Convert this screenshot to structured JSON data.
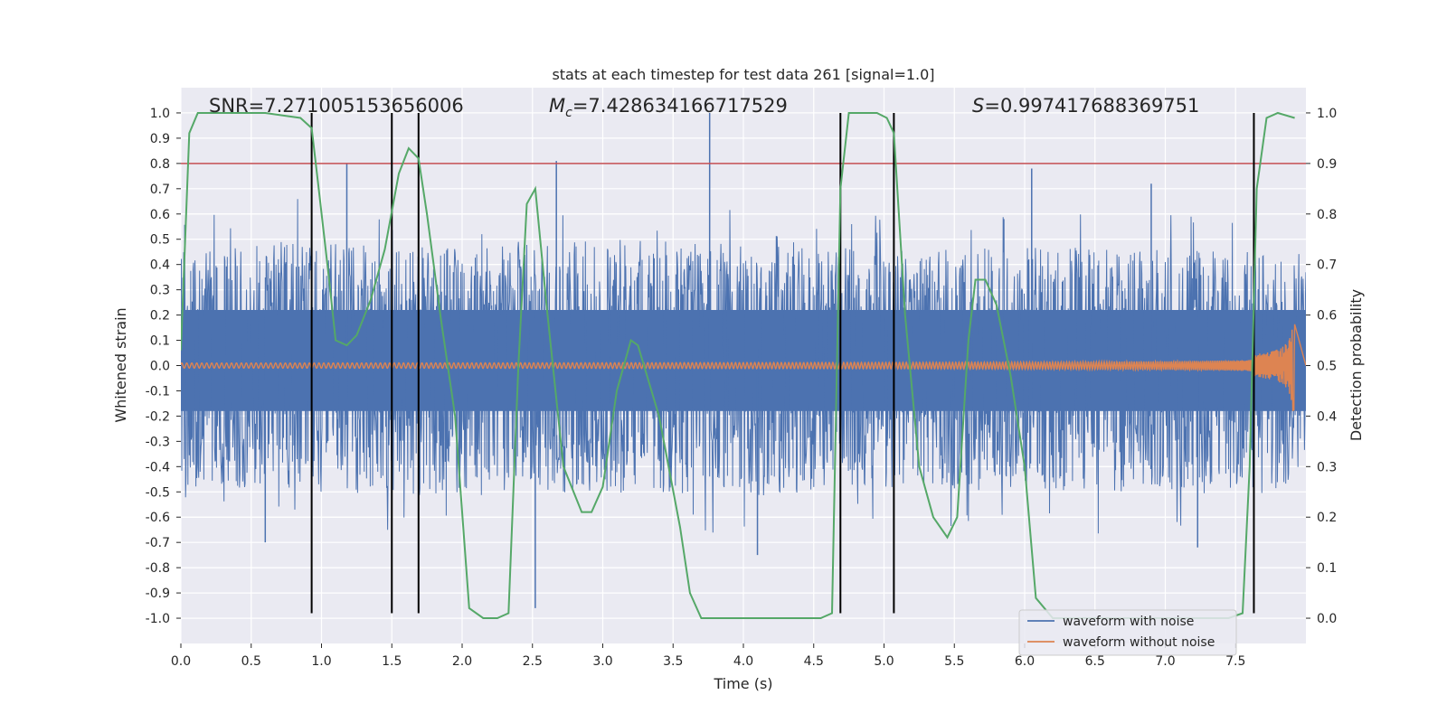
{
  "chart_data": {
    "type": "line",
    "title": "stats at each timestep for test data 261 [signal=1.0]",
    "xlabel": "Time (s)",
    "ylabel": "Whitened strain",
    "y2label": "Detection probability",
    "xlim": [
      0,
      8.0
    ],
    "ylim": [
      -1.1,
      1.1
    ],
    "y2lim": [
      -0.05,
      1.05
    ],
    "x_ticks": [
      0.0,
      0.5,
      1.0,
      1.5,
      2.0,
      2.5,
      3.0,
      3.5,
      4.0,
      4.5,
      5.0,
      5.5,
      6.0,
      6.5,
      7.0,
      7.5
    ],
    "x_tick_labels": [
      "0.0",
      "0.5",
      "1.0",
      "1.5",
      "2.0",
      "2.5",
      "3.0",
      "3.5",
      "4.0",
      "4.5",
      "5.0",
      "5.5",
      "6.0",
      "6.5",
      "7.0",
      "7.5"
    ],
    "y_ticks": [
      1.0,
      0.9,
      0.8,
      0.7,
      0.6,
      0.5,
      0.4,
      0.3,
      0.2,
      0.1,
      0.0,
      -0.1,
      -0.2,
      -0.3,
      -0.4,
      -0.5,
      -0.6,
      -0.7,
      -0.8,
      -0.9,
      -1.0
    ],
    "y_tick_labels": [
      "1.0",
      "0.9",
      "0.8",
      "0.7",
      "0.6",
      "0.5",
      "0.4",
      "0.3",
      "0.2",
      "0.1",
      "0.0",
      "-0.1",
      "-0.2",
      "-0.3",
      "-0.4",
      "-0.5",
      "-0.6",
      "-0.7",
      "-0.8",
      "-0.9",
      "-1.0"
    ],
    "y2_ticks": [
      1.0,
      0.9,
      0.8,
      0.7,
      0.6,
      0.5,
      0.4,
      0.3,
      0.2,
      0.1,
      0.0
    ],
    "y2_tick_labels": [
      "1.0",
      "0.9",
      "0.8",
      "0.7",
      "0.6",
      "0.5",
      "0.4",
      "0.3",
      "0.2",
      "0.1",
      "0.0"
    ],
    "annotations": {
      "snr": "SNR=7.271005153656006",
      "mc_symbol": "M",
      "mc_subscript": "c",
      "mc_value": "=7.428634166717529",
      "s_symbol": "S",
      "s_value": "=0.997417688369751"
    },
    "threshold": {
      "axis": "y2",
      "value": 0.9,
      "color": "#c44e52"
    },
    "vertical_lines": {
      "x": [
        0.93,
        1.5,
        1.69,
        4.69,
        5.07,
        7.63
      ],
      "y_range": [
        -0.98,
        1.0
      ],
      "color": "#000000"
    },
    "noise_envelope": {
      "x": [
        0.0,
        1.0,
        2.0,
        3.0,
        4.0,
        5.0,
        6.0,
        7.0,
        8.0
      ],
      "upper": [
        0.45,
        0.5,
        0.46,
        0.5,
        0.48,
        0.46,
        0.47,
        0.46,
        0.45
      ],
      "lower": [
        -0.48,
        -0.5,
        -0.52,
        -0.5,
        -0.52,
        -0.48,
        -0.5,
        -0.5,
        -0.48
      ]
    },
    "noise_spikes": [
      {
        "x": 1.18,
        "y": 0.8
      },
      {
        "x": 2.52,
        "y": -0.96
      },
      {
        "x": 2.67,
        "y": 0.81
      },
      {
        "x": 3.76,
        "y": 1.0
      },
      {
        "x": 6.05,
        "y": 0.78
      },
      {
        "x": 6.9,
        "y": 0.72
      },
      {
        "x": 7.23,
        "y": -0.72
      },
      {
        "x": 4.1,
        "y": -0.75
      },
      {
        "x": 0.6,
        "y": -0.7
      }
    ],
    "series": [
      {
        "name": "waveform with noise",
        "axis": "y",
        "color": "#4c72b0",
        "style": "noise"
      },
      {
        "name": "waveform without noise",
        "axis": "y",
        "color": "#dd8452",
        "style": "chirp",
        "chirp": {
          "t_merge": 7.92,
          "amp_start": 0.01,
          "amp_peak": 0.18,
          "freq_start": 28
        }
      },
      {
        "name": "detection probability",
        "axis": "y2",
        "color": "#55a868",
        "x": [
          0.0,
          0.06,
          0.12,
          0.3,
          0.6,
          0.85,
          0.93,
          0.98,
          1.05,
          1.1,
          1.18,
          1.25,
          1.35,
          1.45,
          1.55,
          1.62,
          1.69,
          1.75,
          1.85,
          1.95,
          2.05,
          2.15,
          2.25,
          2.33,
          2.4,
          2.46,
          2.52,
          2.6,
          2.72,
          2.85,
          2.92,
          3.0,
          3.1,
          3.2,
          3.25,
          3.4,
          3.55,
          3.62,
          3.7,
          3.9,
          4.2,
          4.55,
          4.63,
          4.69,
          4.75,
          4.8,
          4.95,
          5.02,
          5.07,
          5.15,
          5.25,
          5.35,
          5.45,
          5.52,
          5.6,
          5.65,
          5.72,
          5.8,
          5.9,
          6.0,
          6.08,
          6.2,
          6.4,
          6.9,
          7.2,
          7.45,
          7.55,
          7.6,
          7.65,
          7.72,
          7.8,
          7.92
        ],
        "y": [
          0.53,
          0.96,
          1.0,
          1.0,
          1.0,
          0.99,
          0.97,
          0.85,
          0.68,
          0.55,
          0.54,
          0.56,
          0.63,
          0.73,
          0.88,
          0.93,
          0.91,
          0.8,
          0.59,
          0.4,
          0.02,
          0.0,
          0.0,
          0.01,
          0.5,
          0.82,
          0.85,
          0.62,
          0.3,
          0.21,
          0.21,
          0.26,
          0.45,
          0.55,
          0.54,
          0.4,
          0.18,
          0.05,
          0.0,
          0.0,
          0.0,
          0.0,
          0.01,
          0.85,
          1.0,
          1.0,
          1.0,
          0.99,
          0.96,
          0.6,
          0.3,
          0.2,
          0.16,
          0.2,
          0.55,
          0.67,
          0.67,
          0.62,
          0.48,
          0.3,
          0.04,
          0.0,
          0.0,
          0.0,
          0.0,
          0.0,
          0.01,
          0.3,
          0.85,
          0.99,
          1.0,
          0.99
        ]
      }
    ],
    "legend": {
      "location": "lower-right",
      "entries": [
        {
          "label": "waveform with noise",
          "color": "#4c72b0"
        },
        {
          "label": "waveform without noise",
          "color": "#dd8452"
        }
      ]
    },
    "grid": true,
    "colors": {
      "background": "#eaeaf2",
      "grid": "#ffffff",
      "text": "#262626"
    }
  }
}
